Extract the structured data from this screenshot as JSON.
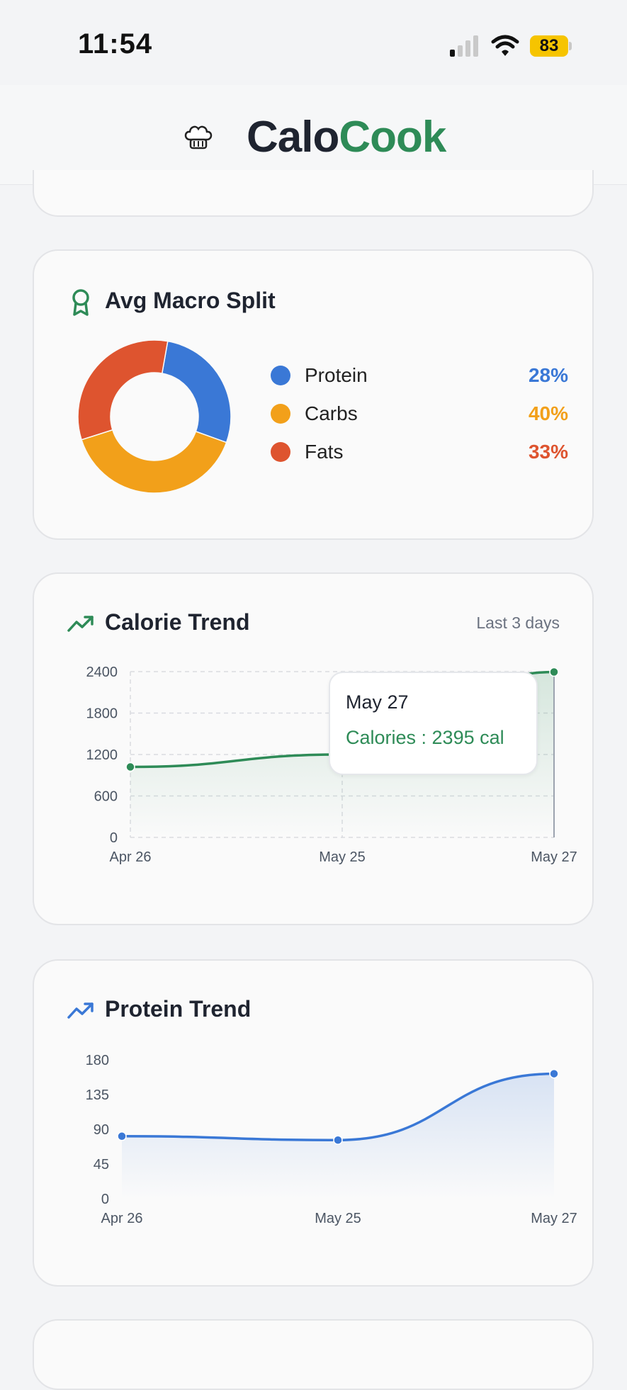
{
  "status": {
    "time": "11:54",
    "battery": "83"
  },
  "header": {
    "brand_part1": "Calo",
    "brand_part2": "Cook"
  },
  "macro": {
    "title": "Avg Macro Split",
    "items": [
      {
        "label": "Protein",
        "value": "28%",
        "pct": 28,
        "color": "#3a78d6"
      },
      {
        "label": "Carbs",
        "value": "40%",
        "pct": 40,
        "color": "#f2a01a"
      },
      {
        "label": "Fats",
        "value": "33%",
        "pct": 33,
        "color": "#de542f"
      }
    ]
  },
  "calorie": {
    "title": "Calorie Trend",
    "subtitle": "Last 3 days",
    "tooltip_date": "May 27",
    "tooltip_value": "Calories : 2395 cal",
    "chart_data": {
      "type": "area",
      "categories": [
        "Apr 26",
        "May 25",
        "May 27"
      ],
      "values": [
        1020,
        1200,
        2395
      ],
      "yticks": [
        "2400",
        "1800",
        "1200",
        "600",
        "0"
      ],
      "ylim": [
        0,
        2400
      ],
      "color": "#2e8b57",
      "grid": true
    }
  },
  "protein": {
    "title": "Protein Trend",
    "chart_data": {
      "type": "area",
      "categories": [
        "Apr 26",
        "May 25",
        "May 27"
      ],
      "values": [
        81,
        76,
        162
      ],
      "yticks": [
        "180",
        "135",
        "90",
        "45",
        "0"
      ],
      "ylim": [
        0,
        180
      ],
      "color": "#3a78d6",
      "grid": false
    }
  }
}
